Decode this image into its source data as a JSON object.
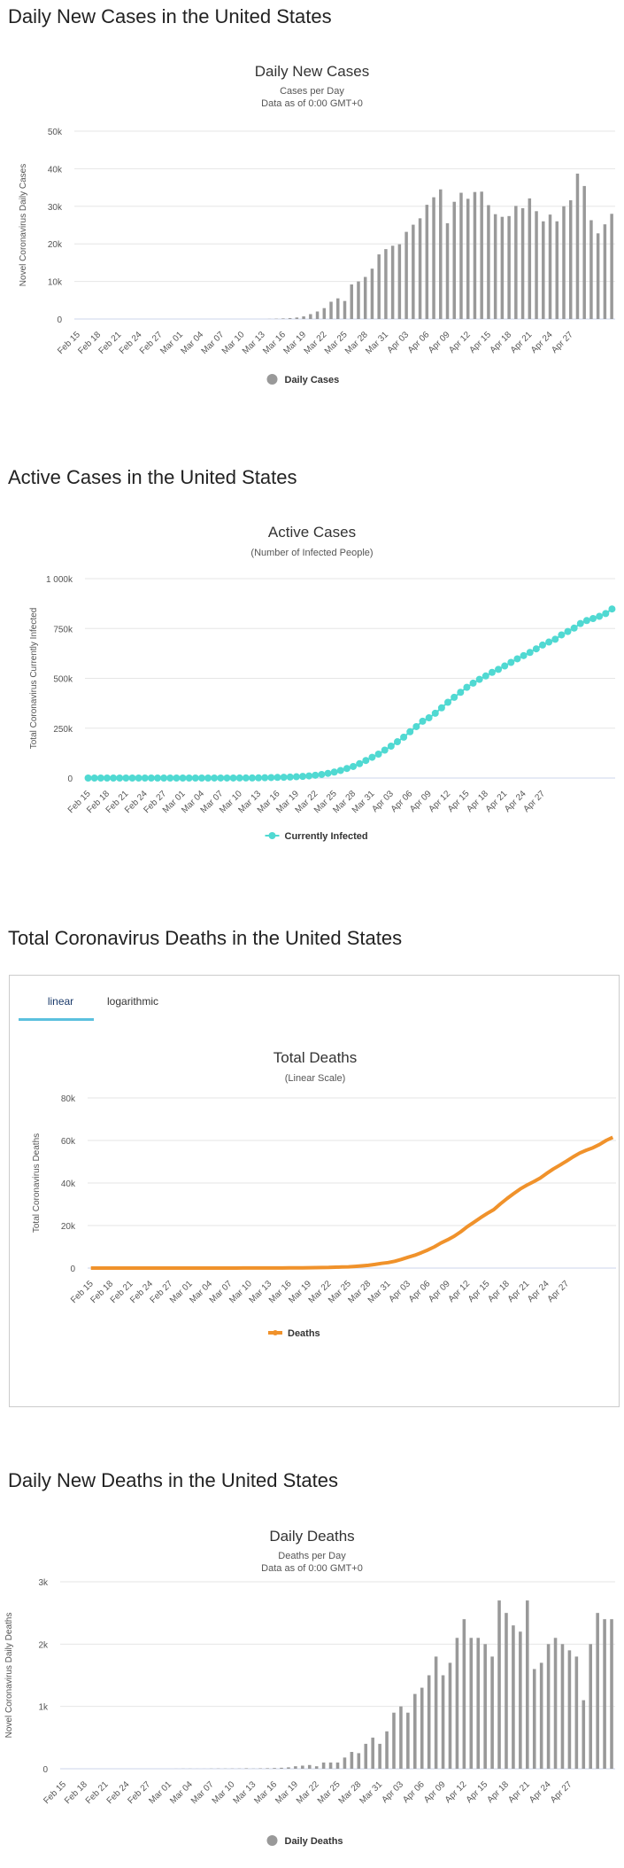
{
  "sections": [
    {
      "heading": "Daily New Cases in the United States"
    },
    {
      "heading": "Active Cases in the United States"
    },
    {
      "heading": "Total Coronavirus Deaths in the United States"
    },
    {
      "heading": "Daily New Deaths in the United States"
    }
  ],
  "tabs": {
    "linear": "linear",
    "logarithmic": "logarithmic"
  },
  "chart_data": [
    {
      "id": "daily-cases",
      "type": "bar",
      "title": "Daily New Cases",
      "subtitle": [
        "Cases per Day",
        "Data as of 0:00 GMT+0"
      ],
      "ylabel": "Novel Coronavirus Daily Cases",
      "xlabel": "",
      "ylim": [
        0,
        50000
      ],
      "yticks": [
        0,
        10000,
        20000,
        30000,
        40000,
        50000
      ],
      "ytick_labels": [
        "0",
        "10k",
        "20k",
        "30k",
        "40k",
        "50k"
      ],
      "color": "#999999",
      "legend": "Daily Cases",
      "legend_position": "bottom",
      "grid": true,
      "x_labels": [
        "Feb 15",
        "Feb 18",
        "Feb 21",
        "Feb 24",
        "Feb 27",
        "Mar 01",
        "Mar 04",
        "Mar 07",
        "Mar 10",
        "Mar 13",
        "Mar 16",
        "Mar 19",
        "Mar 22",
        "Mar 25",
        "Mar 28",
        "Mar 31",
        "Apr 03",
        "Apr 06",
        "Apr 09",
        "Apr 12",
        "Apr 15",
        "Apr 18",
        "Apr 21",
        "Apr 24",
        "Apr 27"
      ],
      "values": [
        0,
        0,
        0,
        0,
        0,
        0,
        0,
        0,
        0,
        0,
        0,
        0,
        0,
        0,
        0,
        0,
        0,
        0,
        0,
        0,
        0,
        0,
        0,
        0,
        0,
        0,
        0,
        0,
        30,
        80,
        150,
        250,
        400,
        700,
        1300,
        2000,
        2900,
        4600,
        5500,
        4800,
        9200,
        10000,
        11200,
        13400,
        17200,
        18600,
        19500,
        19900,
        23200,
        25100,
        26800,
        30400,
        32400,
        34500,
        25500,
        31200,
        33600,
        32000,
        33800,
        33900,
        30300,
        27900,
        27200,
        27400,
        30100,
        29500,
        32100,
        28700,
        26000,
        27800,
        26000,
        30000,
        31600,
        38700,
        35400,
        26300,
        22800,
        25200,
        28000
      ]
    },
    {
      "id": "active-cases",
      "type": "line",
      "title": "Active Cases",
      "subtitle": [
        "(Number of Infected People)"
      ],
      "ylabel": "Total Coronavirus Currently Infected",
      "xlabel": "",
      "ylim": [
        0,
        1000000
      ],
      "yticks": [
        0,
        250000,
        500000,
        750000,
        1000000
      ],
      "ytick_labels": [
        "0",
        "250k",
        "500k",
        "750k",
        "1 000k"
      ],
      "color": "#50d9d2",
      "markers": true,
      "legend": "Currently Infected",
      "legend_position": "bottom",
      "grid": true,
      "x_labels": [
        "Feb 15",
        "Feb 18",
        "Feb 21",
        "Feb 24",
        "Feb 27",
        "Mar 01",
        "Mar 04",
        "Mar 07",
        "Mar 10",
        "Mar 13",
        "Mar 16",
        "Mar 19",
        "Mar 22",
        "Mar 25",
        "Mar 28",
        "Mar 31",
        "Apr 03",
        "Apr 06",
        "Apr 09",
        "Apr 12",
        "Apr 15",
        "Apr 18",
        "Apr 21",
        "Apr 24",
        "Apr 27"
      ],
      "values": [
        13,
        13,
        13,
        13,
        13,
        13,
        13,
        13,
        13,
        13,
        13,
        13,
        13,
        13,
        13,
        14,
        15,
        20,
        40,
        60,
        80,
        100,
        150,
        200,
        300,
        450,
        600,
        900,
        1600,
        2400,
        3100,
        3900,
        5000,
        6500,
        8300,
        10800,
        14000,
        18000,
        23600,
        30000,
        38000,
        48000,
        58000,
        72000,
        88000,
        104000,
        120000,
        140000,
        160000,
        182000,
        205000,
        232000,
        258000,
        285000,
        302000,
        325000,
        352000,
        380000,
        405000,
        430000,
        455000,
        476000,
        495000,
        512000,
        530000,
        545000,
        562000,
        580000,
        598000,
        614000,
        630000,
        648000,
        667000,
        682000,
        696000,
        718000,
        735000,
        752000,
        775000,
        790000,
        800000,
        811000,
        825000,
        848000
      ]
    },
    {
      "id": "total-deaths",
      "type": "line",
      "title": "Total Deaths",
      "subtitle": [
        "(Linear Scale)"
      ],
      "ylabel": "Total Coronavirus Deaths",
      "xlabel": "",
      "ylim": [
        0,
        80000
      ],
      "yticks": [
        0,
        20000,
        40000,
        60000,
        80000
      ],
      "ytick_labels": [
        "0",
        "20k",
        "40k",
        "60k",
        "80k"
      ],
      "color": "#f0922b",
      "markers": false,
      "legend": "Deaths",
      "legend_position": "bottom",
      "grid": true,
      "x_labels": [
        "Feb 15",
        "Feb 18",
        "Feb 21",
        "Feb 24",
        "Feb 27",
        "Mar 01",
        "Mar 04",
        "Mar 07",
        "Mar 10",
        "Mar 13",
        "Mar 16",
        "Mar 19",
        "Mar 22",
        "Mar 25",
        "Mar 28",
        "Mar 31",
        "Apr 03",
        "Apr 06",
        "Apr 09",
        "Apr 12",
        "Apr 15",
        "Apr 18",
        "Apr 21",
        "Apr 24",
        "Apr 27"
      ],
      "values": [
        0,
        0,
        0,
        0,
        0,
        0,
        0,
        0,
        0,
        0,
        0,
        0,
        0,
        0,
        0,
        1,
        2,
        6,
        9,
        11,
        12,
        15,
        19,
        22,
        26,
        30,
        38,
        41,
        48,
        57,
        69,
        85,
        108,
        150,
        200,
        260,
        300,
        400,
        500,
        600,
        780,
        1050,
        1300,
        1700,
        2200,
        2600,
        3200,
        4100,
        5100,
        6000,
        7200,
        8500,
        10000,
        11800,
        13300,
        15000,
        17100,
        19500,
        21600,
        23700,
        25700,
        27500,
        30200,
        32700,
        35000,
        37200,
        39000,
        40600,
        42300,
        44500,
        46600,
        48400,
        50300,
        52300,
        54100,
        55400,
        56600,
        58100,
        60000,
        61500
      ]
    },
    {
      "id": "daily-deaths",
      "type": "bar",
      "title": "Daily Deaths",
      "subtitle": [
        "Deaths per Day",
        "Data as of 0:00 GMT+0"
      ],
      "ylabel": "Novel Coronavirus Daily Deaths",
      "xlabel": "",
      "ylim": [
        0,
        3000
      ],
      "yticks": [
        0,
        1000,
        2000,
        3000
      ],
      "ytick_labels": [
        "0",
        "1k",
        "2k",
        "3k"
      ],
      "color": "#999999",
      "legend": "Daily Deaths",
      "legend_position": "bottom",
      "grid": true,
      "x_labels": [
        "Feb 15",
        "Feb 18",
        "Feb 21",
        "Feb 24",
        "Feb 27",
        "Mar 01",
        "Mar 04",
        "Mar 07",
        "Mar 10",
        "Mar 13",
        "Mar 16",
        "Mar 19",
        "Mar 22",
        "Mar 25",
        "Mar 28",
        "Mar 31",
        "Apr 03",
        "Apr 06",
        "Apr 09",
        "Apr 12",
        "Apr 15",
        "Apr 18",
        "Apr 21",
        "Apr 24",
        "Apr 27"
      ],
      "values": [
        0,
        0,
        0,
        0,
        0,
        0,
        0,
        0,
        0,
        0,
        0,
        0,
        0,
        0,
        0,
        0,
        1,
        2,
        2,
        1,
        1,
        3,
        4,
        3,
        4,
        4,
        8,
        3,
        7,
        9,
        12,
        16,
        23,
        40,
        50,
        60,
        40,
        100,
        100,
        100,
        180,
        270,
        250,
        400,
        500,
        400,
        600,
        900,
        1000,
        900,
        1200,
        1300,
        1500,
        1800,
        1500,
        1700,
        2100,
        2400,
        2100,
        2100,
        2000,
        1800,
        2700,
        2500,
        2300,
        2200,
        2700,
        1600,
        1700,
        2000,
        2100,
        2000,
        1900,
        1800,
        1100,
        2000,
        2500,
        2400,
        2400
      ]
    }
  ]
}
